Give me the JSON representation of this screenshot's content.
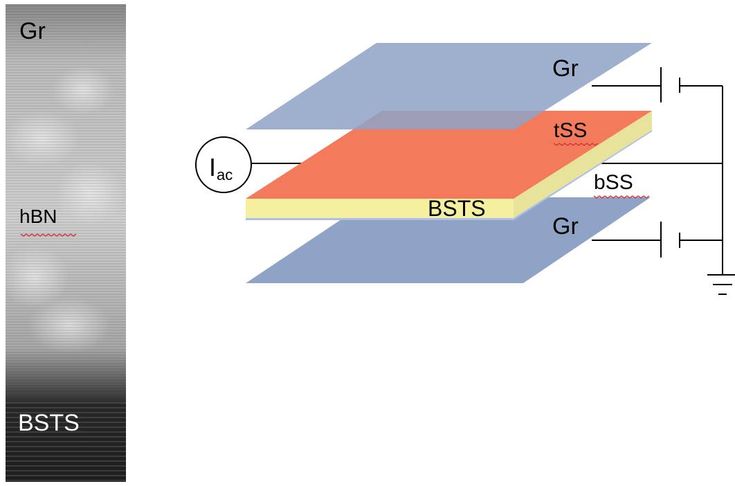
{
  "micrograph": {
    "labels": {
      "top": "Gr",
      "middle": "hBN",
      "bottom": "BSTS"
    }
  },
  "schematic": {
    "source_main": "I",
    "source_sub": "ac",
    "labels": {
      "top_graphene": "Gr",
      "top_surface": "tSS",
      "crystal": "BSTS",
      "bottom_surface": "bSS",
      "bottom_graphene": "Gr"
    }
  },
  "colors": {
    "graphene": "#8fa3c6",
    "top_surface": "#f47a5c",
    "crystal_side": "#f4f0a0",
    "micrograph_light": "#c9c9c9",
    "micrograph_dark": "#2a2a2a",
    "line": "#000000",
    "squiggle": "#d23a3a"
  }
}
